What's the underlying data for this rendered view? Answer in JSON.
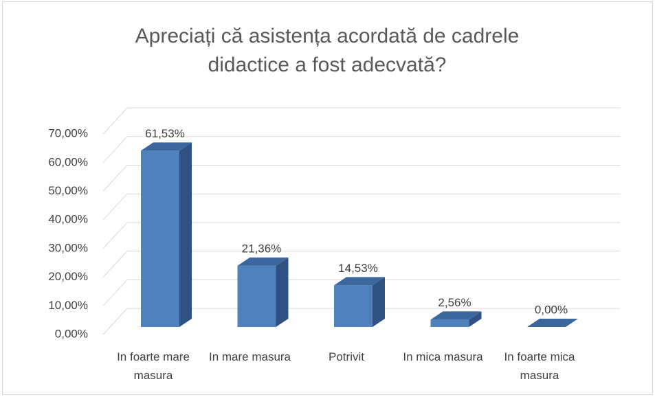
{
  "chart_data": {
    "type": "bar3d",
    "title": "Apreciați că asistența acordată de cadrele didactice a fost adecvată?",
    "categories": [
      "In foarte mare masura",
      "In mare masura",
      "Potrivit",
      "In mica masura",
      "In foarte mica masura"
    ],
    "values": [
      61.53,
      21.36,
      14.53,
      2.56,
      0
    ],
    "value_labels": [
      "61,53%",
      "21,36%",
      "14,53%",
      "2,56%",
      "0,00%"
    ],
    "color": "#4f81bd",
    "ylim": [
      0,
      70
    ],
    "yticks": [
      {
        "value": 0,
        "label": "0,00%"
      },
      {
        "value": 10,
        "label": "10,00%"
      },
      {
        "value": 20,
        "label": "20,00%"
      },
      {
        "value": 30,
        "label": "30,00%"
      },
      {
        "value": 40,
        "label": "40,00%"
      },
      {
        "value": 50,
        "label": "50,00%"
      },
      {
        "value": 60,
        "label": "60,00%"
      },
      {
        "value": 70,
        "label": "70,00%"
      }
    ],
    "grid": true
  }
}
